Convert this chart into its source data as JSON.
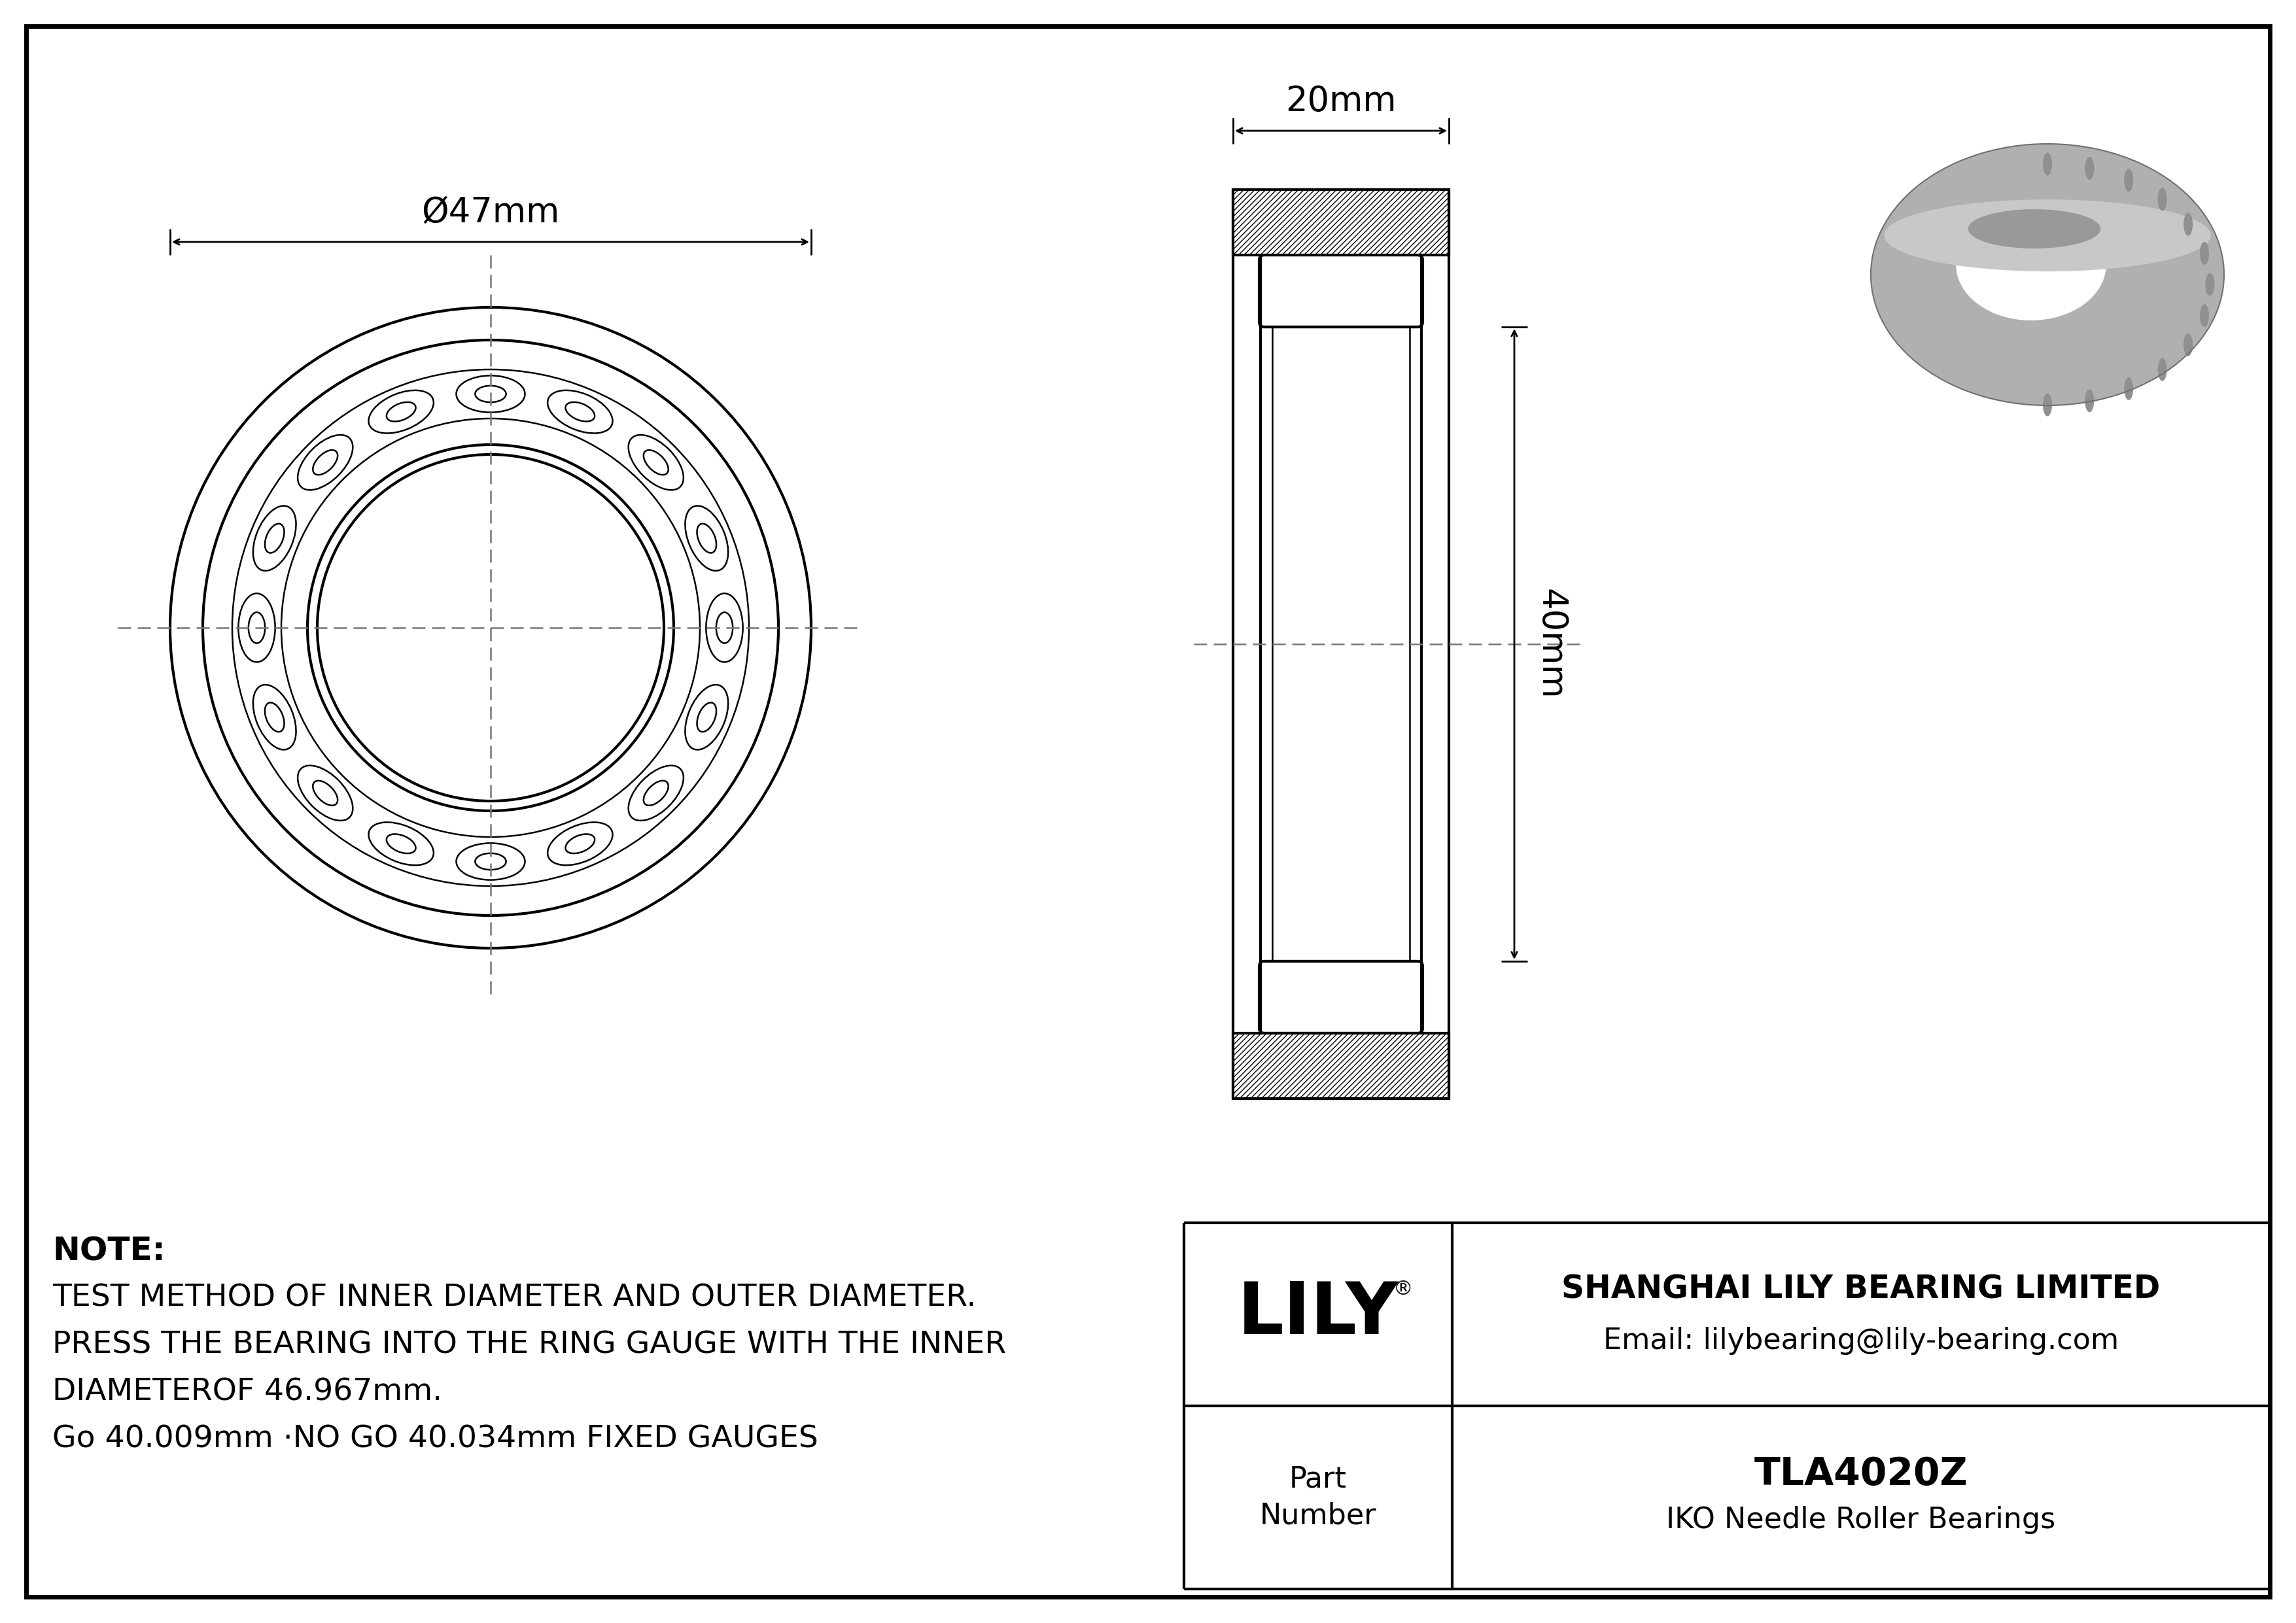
{
  "bg_color": "#ffffff",
  "line_color": "#000000",
  "gray_3d": "#b0b0b0",
  "gray_3d_dark": "#888888",
  "gray_3d_mid": "#999999",
  "note_text_lines": [
    "NOTE:",
    "TEST METHOD OF INNER DIAMETER AND OUTER DIAMETER.",
    "PRESS THE BEARING INTO THE RING GAUGE WITH THE INNER",
    "DIAMETEROF 46.967mm.",
    "Go 40.009mm ·NO GO 40.034mm FIXED GAUGES"
  ],
  "company_name": "SHANGHAI LILY BEARING LIMITED",
  "company_email": "Email: lilybearing@lily-bearing.com",
  "part_number": "TLA4020Z",
  "part_type": "IKO Needle Roller Bearings",
  "brand": "LILY",
  "brand_reg": "®",
  "dim_outer": "Ø47mm",
  "dim_width": "20mm",
  "dim_height": "40mm",
  "note_fontsize": 34,
  "label_fontsize": 38,
  "brand_fontsize": 80,
  "table_fontsize": 32,
  "part_fontsize": 42
}
